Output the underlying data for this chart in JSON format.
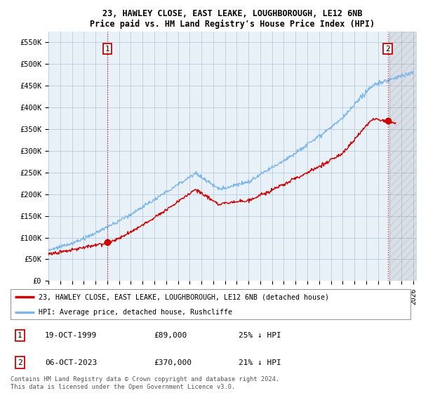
{
  "title": "23, HAWLEY CLOSE, EAST LEAKE, LOUGHBOROUGH, LE12 6NB",
  "subtitle": "Price paid vs. HM Land Registry's House Price Index (HPI)",
  "hpi_color": "#7EB6E8",
  "price_color": "#CC0000",
  "marker_color": "#CC0000",
  "background_color": "#FFFFFF",
  "grid_color": "#BBCCDD",
  "plot_bg": "#E8F0F8",
  "ylim": [
    0,
    575000
  ],
  "yticks": [
    0,
    50000,
    100000,
    150000,
    200000,
    250000,
    300000,
    350000,
    400000,
    450000,
    500000,
    550000
  ],
  "ytick_labels": [
    "£0",
    "£50K",
    "£100K",
    "£150K",
    "£200K",
    "£250K",
    "£300K",
    "£350K",
    "£400K",
    "£450K",
    "£500K",
    "£550K"
  ],
  "xlim_start": 1995.0,
  "xlim_end": 2026.3,
  "transactions": [
    {
      "date": "19-OCT-1999",
      "price": 89000,
      "label": "1",
      "x": 2000.0
    },
    {
      "date": "06-OCT-2023",
      "price": 370000,
      "label": "2",
      "x": 2023.83
    }
  ],
  "legend_line1": "23, HAWLEY CLOSE, EAST LEAKE, LOUGHBOROUGH, LE12 6NB (detached house)",
  "legend_line2": "HPI: Average price, detached house, Rushcliffe",
  "footnote": "Contains HM Land Registry data © Crown copyright and database right 2024.\nThis data is licensed under the Open Government Licence v3.0.",
  "table_rows": [
    [
      "1",
      "19-OCT-1999",
      "£89,000",
      "25% ↓ HPI"
    ],
    [
      "2",
      "06-OCT-2023",
      "£370,000",
      "21% ↓ HPI"
    ]
  ],
  "hatch_start": 2024.0
}
